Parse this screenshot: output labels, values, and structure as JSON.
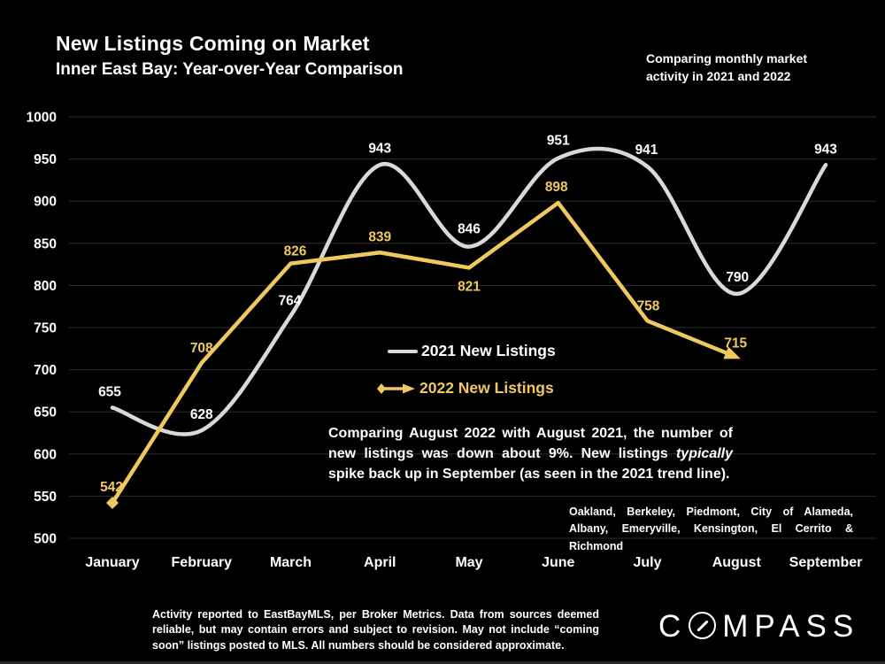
{
  "header": {
    "title": "New Listings Coming on Market",
    "subtitle": "Inner East Bay: Year-over-Year Comparison",
    "note": "Comparing monthly market activity in 2021 and 2022"
  },
  "legend": {
    "series1": "2021 New Listings",
    "series2": "2022 New Listings"
  },
  "annotation": {
    "part1": "Comparing August 2022 with August 2021, the number of new listings was down about 9%. New listings ",
    "italic": "typically",
    "part2": " spike back up in September (as seen in the 2021 trend line)."
  },
  "region_note": "Oakland, Berkeley, Piedmont, City of Alameda, Albany, Emeryville, Kensington, El Cerrito & Richmond",
  "footer_note": "Activity reported to EastBayMLS, per Broker Metrics. Data from sources deemed reliable, but may contain errors and subject to revision. May not include “coming soon” listings posted to MLS. All numbers should be considered approximate.",
  "logo": {
    "prefix": "C",
    "suffix": "MPASS",
    "name": "COMPASS"
  },
  "colors": {
    "background": "#000000",
    "grid": "#2E2E2E",
    "axis_text": "#FFFFFF",
    "line_2021": "#D9D9D9",
    "line_2022": "#EFC95F",
    "label_2021": "#FFFFFF",
    "label_2022": "#EFC95F"
  },
  "chart_data": {
    "type": "line",
    "title": "New Listings Coming on Market",
    "xlabel": "",
    "ylabel": "",
    "categories": [
      "January",
      "February",
      "March",
      "April",
      "May",
      "June",
      "July",
      "August",
      "September"
    ],
    "series": [
      {
        "name": "2021 New Listings",
        "color": "#D9D9D9",
        "style": "smooth",
        "values": [
          655,
          628,
          764,
          943,
          846,
          951,
          941,
          790,
          943
        ],
        "label_offsets": [
          [
            -3,
            -13
          ],
          [
            0,
            -13
          ],
          [
            -1,
            -12
          ],
          [
            0,
            -14
          ],
          [
            0,
            -15
          ],
          [
            0,
            -15
          ],
          [
            -1,
            -14
          ],
          [
            1,
            -14
          ],
          [
            0,
            -13
          ]
        ]
      },
      {
        "name": "2022 New Listings",
        "color": "#EFC95F",
        "style": "straight",
        "marker_start": "diamond",
        "marker_end": "arrow",
        "values": [
          542,
          708,
          826,
          839,
          821,
          898,
          758,
          715
        ],
        "label_offsets": [
          [
            -1,
            -13
          ],
          [
            0,
            -12
          ],
          [
            5,
            -9
          ],
          [
            0,
            -13
          ],
          [
            0,
            26
          ],
          [
            -2,
            -13
          ],
          [
            1,
            -12
          ],
          [
            -1,
            -11
          ]
        ]
      }
    ],
    "ylim": [
      500,
      1000
    ],
    "ytick_step": 50,
    "grid": "horizontal",
    "legend_position": "center"
  }
}
